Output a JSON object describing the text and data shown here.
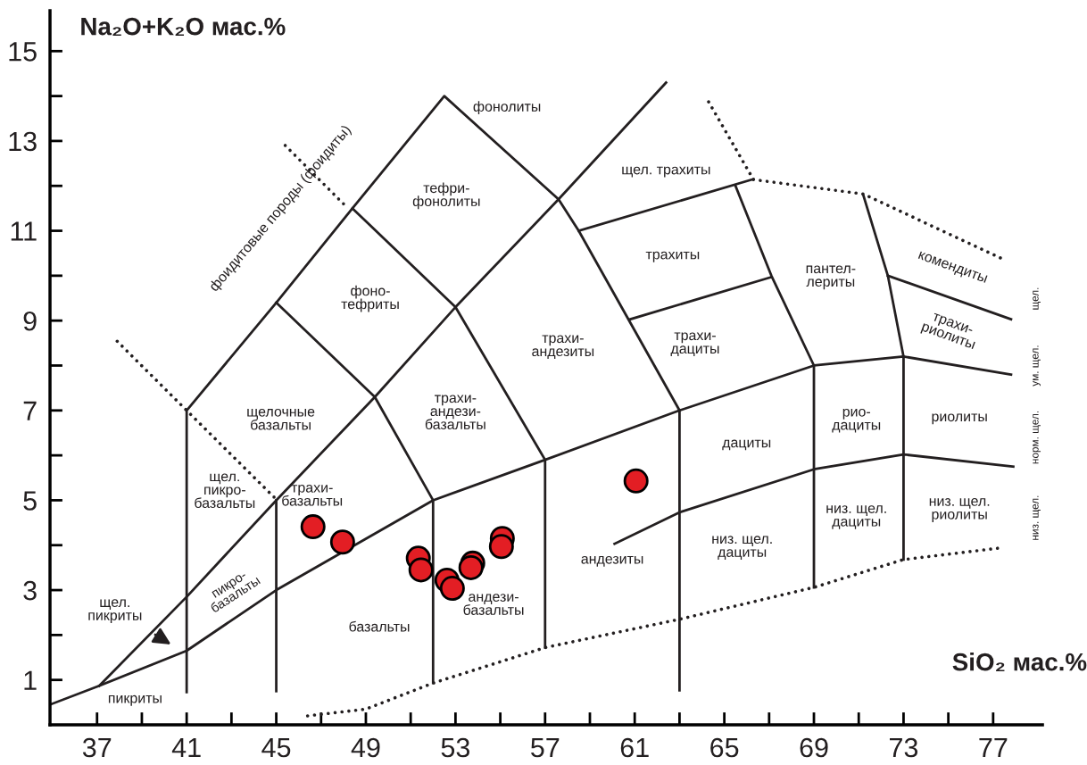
{
  "chart_data": {
    "type": "line",
    "ylabel": "Na₂O+K₂O мас.%",
    "xlabel": "SiO₂ мас.%",
    "xlim": [
      34.9,
      79.2
    ],
    "ylim": [
      0,
      15.9
    ],
    "xticks": [
      37,
      {
        "value": 39,
        "label": null
      },
      41,
      {
        "value": 43,
        "label": null
      },
      45,
      {
        "value": 47,
        "label": null
      },
      49,
      {
        "value": 51,
        "label": null
      },
      53,
      {
        "value": 55,
        "label": null
      },
      57,
      {
        "value": 59,
        "label": null
      },
      61,
      {
        "value": 63,
        "label": null
      },
      65,
      {
        "value": 67,
        "label": null
      },
      69,
      {
        "value": 71,
        "label": null
      },
      73,
      {
        "value": 75,
        "label": null
      },
      77
    ],
    "yticks": [
      1,
      {
        "value": 2,
        "label": null
      },
      3,
      {
        "value": 4,
        "label": null
      },
      5,
      {
        "value": 6,
        "label": null
      },
      7,
      {
        "value": 8,
        "label": null
      },
      9,
      {
        "value": 10,
        "label": null
      },
      11,
      {
        "value": 12,
        "label": null
      },
      13,
      {
        "value": 14,
        "label": null
      },
      15
    ],
    "grid": false,
    "series": [
      {
        "color": "#231f20",
        "line_style": "solid",
        "x": [
          34.9,
          37.1,
          41,
          45,
          52,
          57,
          63,
          69,
          73,
          77.8
        ],
        "values": [
          0.45,
          0.87,
          1.65,
          3,
          5,
          5.9,
          7,
          8,
          8.2,
          7.8
        ]
      },
      {
        "color": "#231f20",
        "line_style": "solid",
        "x": [
          37.1,
          41,
          45,
          49.4,
          53,
          57.6,
          62.4
        ],
        "values": [
          0.87,
          2.85,
          5,
          7.3,
          9.3,
          11.7,
          14.3
        ]
      },
      {
        "color": "#231f20",
        "line_style": "solid",
        "x": [
          41,
          41,
          45,
          48.4,
          52.5,
          57.6,
          58.5,
          63,
          63
        ],
        "values": [
          0.73,
          7,
          9.4,
          11.5,
          14,
          11.7,
          11,
          7,
          0.77
        ]
      },
      {
        "color": "#231f20",
        "line_style": "solid",
        "x": [
          45,
          45
        ],
        "values": [
          0.75,
          5
        ]
      },
      {
        "color": "#231f20",
        "line_style": "solid",
        "x": [
          45,
          49.4,
          52,
          52
        ],
        "values": [
          9.4,
          7.3,
          5,
          0.93
        ]
      },
      {
        "color": "#231f20",
        "line_style": "solid",
        "x": [
          48.4,
          53,
          57,
          57
        ],
        "values": [
          11.5,
          9.3,
          5.9,
          1.72
        ]
      },
      {
        "color": "#231f20",
        "line_style": "solid",
        "x": [
          65.5,
          67.1,
          69,
          69
        ],
        "values": [
          12,
          10,
          8,
          3.06
        ]
      },
      {
        "color": "#231f20",
        "line_style": "solid",
        "x": [
          73,
          73,
          72.3,
          71.2
        ],
        "values": [
          3.68,
          8.2,
          10,
          11.8
        ]
      },
      {
        "color": "#231f20",
        "line_style": "solid",
        "x": [
          58.5,
          66.3
        ],
        "values": [
          11,
          12.15
        ]
      },
      {
        "color": "#231f20",
        "line_style": "solid",
        "x": [
          60.8,
          67.1
        ],
        "values": [
          9.03,
          9.97
        ]
      },
      {
        "color": "#231f20",
        "line_style": "solid",
        "x": [
          72.3,
          77.8
        ],
        "values": [
          10,
          9.03
        ]
      },
      {
        "color": "#231f20",
        "line_style": "solid",
        "x": [
          60.1,
          63,
          69,
          73,
          77.9
        ],
        "values": [
          4.03,
          4.73,
          5.69,
          6.02,
          5.75
        ]
      },
      {
        "color": "#231f20",
        "line_style": "dotted",
        "x": [
          46.4,
          49,
          52,
          57,
          63,
          69,
          73,
          77.5
        ],
        "values": [
          0.2,
          0.35,
          0.93,
          1.72,
          2.35,
          3.06,
          3.68,
          3.95
        ]
      },
      {
        "color": "#231f20",
        "line_style": "dotted",
        "x": [
          37.9,
          41,
          44.9
        ],
        "values": [
          8.54,
          7,
          5.07
        ]
      },
      {
        "color": "#231f20",
        "line_style": "dotted",
        "x": [
          45.4,
          48
        ],
        "values": [
          12.9,
          11.6
        ]
      },
      {
        "color": "#231f20",
        "line_style": "dotted",
        "x": [
          64.3,
          66.3,
          71.2,
          77.6
        ],
        "values": [
          13.87,
          12.14,
          11.82,
          10.33
        ]
      },
      {
        "type": "scatter",
        "color": "#e31e24",
        "marker": "circle",
        "x": [
          46.64,
          47.96,
          51.34,
          51.46,
          52.62,
          52.86,
          53.77,
          53.69,
          55.09,
          55.05,
          61.06
        ],
        "values": [
          4.41,
          4.07,
          3.71,
          3.45,
          3.22,
          3.04,
          3.6,
          3.5,
          4.15,
          3.97,
          5.43
        ]
      }
    ],
    "annotations": [
      "фонолиты",
      "тефри-\nфонолиты",
      "щел. трахиты",
      "трахиты",
      "фоно-\nтефриты",
      "трахи-\nандезиты",
      "трахи-\nдациты",
      "пантел-\nлериты",
      "комендиты",
      "трахи-\nриолиты",
      "щелочные\nбазальты",
      "трахи-\nандези-\nбазальты",
      "дациты",
      "рио-\nдациты",
      "риолиты",
      "щел.\nпикро-\nбазальты",
      "трахи-\nбазальты",
      "андезиты",
      "низ. щел.\nдациты",
      "низ. щел.\nдациты",
      "низ. щел.\nриолиты",
      "андези-\nбазальты",
      "базальты",
      "пикро-\nбазальты",
      "щел.\nпикриты",
      "пикриты",
      "фоидитовые породы (фоидиты)",
      "щел.",
      "ум. щел.",
      "норм. щел.",
      "низ. щел."
    ]
  }
}
